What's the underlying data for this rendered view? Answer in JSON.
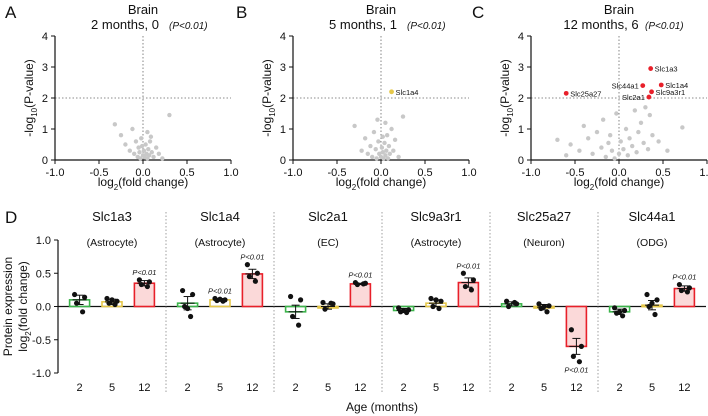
{
  "colors": {
    "gene_hit": "#e8202a",
    "gene_hit_b": "#e6c84a",
    "nonsig": "#c8c8c8",
    "bar_green": "#3cb44b",
    "bar_yellow": "#e6c84a",
    "bar_red": "#e8202a",
    "bar_red_fill": "#fbd9d9",
    "axis": "#111111"
  },
  "chart_data": [
    {
      "panel": "A",
      "type": "scatter",
      "title_line1": "Brain",
      "title_line2": "2 months, 0",
      "pnote": "(P<0.01)",
      "xlabel": "log2(fold change)",
      "ylabel": "-log10(P-value)",
      "xlim": [
        -1.0,
        1.0
      ],
      "ylim": [
        0,
        4
      ],
      "xticks": [
        "-1.0",
        "-0.5",
        "0.0",
        "0.5",
        "1.0"
      ],
      "yticks": [
        "0",
        "1",
        "2",
        "3",
        "4"
      ],
      "threshold_y": 2,
      "points": [
        [
          -0.32,
          1.15
        ],
        [
          -0.25,
          0.8
        ],
        [
          -0.2,
          0.5
        ],
        [
          -0.15,
          0.3
        ],
        [
          -0.12,
          1.0
        ],
        [
          -0.1,
          0.2
        ],
        [
          -0.08,
          0.6
        ],
        [
          -0.06,
          0.1
        ],
        [
          -0.05,
          0.4
        ],
        [
          -0.03,
          0.05
        ],
        [
          -0.02,
          0.7
        ],
        [
          0.0,
          0.15
        ],
        [
          0.01,
          0.3
        ],
        [
          0.02,
          0.1
        ],
        [
          0.03,
          0.5
        ],
        [
          0.04,
          0.2
        ],
        [
          0.05,
          0.05
        ],
        [
          0.06,
          0.35
        ],
        [
          0.07,
          0.15
        ],
        [
          0.08,
          0.6
        ],
        [
          0.1,
          0.25
        ],
        [
          0.12,
          0.1
        ],
        [
          0.15,
          0.4
        ],
        [
          0.18,
          0.2
        ],
        [
          0.22,
          0.05
        ],
        [
          0.3,
          1.45
        ],
        [
          0.05,
          0.9
        ],
        [
          -0.01,
          0.45
        ],
        [
          0.09,
          0.75
        ],
        [
          -0.04,
          0.25
        ]
      ],
      "labeled_points": []
    },
    {
      "panel": "B",
      "type": "scatter",
      "title_line1": "Brain",
      "title_line2": "5 months, 1",
      "pnote": "(P<0.01)",
      "xlabel": "log2(fold change)",
      "ylabel": "-log10(P-value)",
      "xlim": [
        -1.0,
        1.0
      ],
      "ylim": [
        0,
        4
      ],
      "xticks": [
        "-1.0",
        "-0.5",
        "0.0",
        "0.5",
        "1.0"
      ],
      "yticks": [
        "0",
        "1",
        "2",
        "3",
        "4"
      ],
      "threshold_y": 2,
      "points": [
        [
          -0.3,
          1.1
        ],
        [
          -0.22,
          0.3
        ],
        [
          -0.18,
          0.7
        ],
        [
          -0.15,
          0.2
        ],
        [
          -0.12,
          0.45
        ],
        [
          -0.1,
          0.1
        ],
        [
          -0.08,
          0.9
        ],
        [
          -0.06,
          0.35
        ],
        [
          -0.05,
          0.05
        ],
        [
          -0.03,
          0.6
        ],
        [
          -0.02,
          0.2
        ],
        [
          0.0,
          0.1
        ],
        [
          0.01,
          0.4
        ],
        [
          0.02,
          0.25
        ],
        [
          0.03,
          0.05
        ],
        [
          0.04,
          0.55
        ],
        [
          0.05,
          0.15
        ],
        [
          0.06,
          0.3
        ],
        [
          0.07,
          0.8
        ],
        [
          0.08,
          0.05
        ],
        [
          0.09,
          0.45
        ],
        [
          0.1,
          0.2
        ],
        [
          0.12,
          1.0
        ],
        [
          0.14,
          0.3
        ],
        [
          0.16,
          0.65
        ],
        [
          0.2,
          0.1
        ],
        [
          0.25,
          1.4
        ],
        [
          0.05,
          1.2
        ],
        [
          -0.04,
          1.3
        ],
        [
          0.02,
          0.75
        ]
      ],
      "labeled_points": [
        {
          "label": "Slc1a4",
          "x": 0.12,
          "y": 2.2,
          "color": "#e6c84a"
        }
      ]
    },
    {
      "panel": "C",
      "type": "scatter",
      "title_line1": "Brain",
      "title_line2": "12 months, 6",
      "pnote": "(P<0.01)",
      "xlabel": "log2(fold change)",
      "ylabel": "-log10(P-value)",
      "xlim": [
        -1.0,
        1.0
      ],
      "ylim": [
        0,
        4
      ],
      "xticks": [
        "-1.0",
        "-0.5",
        "0.0",
        "0.5",
        "1.0"
      ],
      "yticks": [
        "0",
        "1",
        "2",
        "3",
        "4"
      ],
      "threshold_y": 2,
      "points": [
        [
          -0.7,
          0.65
        ],
        [
          -0.55,
          0.5
        ],
        [
          -0.45,
          0.3
        ],
        [
          -0.4,
          1.1
        ],
        [
          -0.35,
          0.7
        ],
        [
          -0.3,
          0.2
        ],
        [
          -0.25,
          0.9
        ],
        [
          -0.2,
          0.4
        ],
        [
          -0.18,
          1.3
        ],
        [
          -0.15,
          0.1
        ],
        [
          -0.12,
          0.55
        ],
        [
          -0.1,
          0.8
        ],
        [
          -0.08,
          0.3
        ],
        [
          -0.05,
          0.05
        ],
        [
          -0.03,
          1.5
        ],
        [
          0.0,
          0.2
        ],
        [
          0.02,
          0.6
        ],
        [
          0.05,
          0.35
        ],
        [
          0.08,
          1.0
        ],
        [
          0.1,
          0.15
        ],
        [
          0.12,
          0.7
        ],
        [
          0.15,
          0.45
        ],
        [
          0.18,
          1.6
        ],
        [
          0.2,
          0.25
        ],
        [
          0.22,
          0.9
        ],
        [
          0.25,
          1.2
        ],
        [
          0.28,
          0.55
        ],
        [
          0.3,
          1.7
        ],
        [
          0.33,
          0.35
        ],
        [
          0.38,
          0.8
        ],
        [
          0.45,
          0.6
        ],
        [
          0.55,
          0.3
        ],
        [
          0.72,
          1.05
        ],
        [
          -0.6,
          0.15
        ],
        [
          0.35,
          1.45
        ]
      ],
      "labeled_points": [
        {
          "label": "Slc1a3",
          "x": 0.36,
          "y": 2.95,
          "color": "#e8202a"
        },
        {
          "label": "Slc44a1",
          "x": 0.27,
          "y": 2.4,
          "color": "#e8202a"
        },
        {
          "label": "Slc1a4",
          "x": 0.48,
          "y": 2.42,
          "color": "#e8202a"
        },
        {
          "label": "Slc9a3r1",
          "x": 0.37,
          "y": 2.2,
          "color": "#e8202a"
        },
        {
          "label": "Slc2a1",
          "x": 0.34,
          "y": 2.03,
          "color": "#e8202a"
        },
        {
          "label": "Slc25a27",
          "x": -0.6,
          "y": 2.15,
          "color": "#e8202a"
        }
      ]
    },
    {
      "panel": "D",
      "type": "bar",
      "ylabel_line1": "Protein expression",
      "ylabel_line2": "log2(fold change)",
      "xlabel": "Age (months)",
      "ylim": [
        -1.0,
        1.0
      ],
      "yticks": [
        "-1.0",
        "-0.5",
        "0.0",
        "0.5",
        "1.0"
      ],
      "age_labels": [
        "2",
        "5",
        "12"
      ],
      "groups": [
        {
          "gene": "Slc1a3",
          "cell": "(Astrocyte)",
          "bars": [
            {
              "age": "2",
              "mean": 0.1,
              "sem": 0.07,
              "color": "green",
              "pts": [
                0.18,
                0.14,
                0.05,
                -0.08
              ],
              "p": ""
            },
            {
              "age": "5",
              "mean": 0.07,
              "sem": 0.04,
              "color": "yellow",
              "pts": [
                0.12,
                0.08,
                0.05,
                0.03,
                0.1
              ],
              "p": ""
            },
            {
              "age": "12",
              "mean": 0.35,
              "sem": 0.04,
              "color": "red",
              "pts": [
                0.4,
                0.37,
                0.33,
                0.3
              ],
              "p": "P<0.01"
            }
          ]
        },
        {
          "gene": "Slc1a4",
          "cell": "(Astrocyte)",
          "bars": [
            {
              "age": "2",
              "mean": 0.05,
              "sem": 0.1,
              "color": "green",
              "pts": [
                0.24,
                0.18,
                0.0,
                -0.15,
                -0.03
              ],
              "p": ""
            },
            {
              "age": "5",
              "mean": 0.1,
              "sem": 0.02,
              "color": "yellow",
              "pts": [
                0.12,
                0.1,
                0.09,
                0.08,
                0.11
              ],
              "p": "P<0.01"
            },
            {
              "age": "12",
              "mean": 0.49,
              "sem": 0.07,
              "color": "red",
              "pts": [
                0.63,
                0.5,
                0.45,
                0.38
              ],
              "p": "P<0.01"
            }
          ]
        },
        {
          "gene": "Slc2a1",
          "cell": "(EC)",
          "bars": [
            {
              "age": "2",
              "mean": -0.08,
              "sem": 0.1,
              "color": "green",
              "pts": [
                0.15,
                0.1,
                -0.15,
                -0.28
              ],
              "p": ""
            },
            {
              "age": "5",
              "mean": 0.0,
              "sem": 0.04,
              "color": "yellow",
              "pts": [
                0.06,
                0.04,
                -0.04,
                0.05
              ],
              "p": ""
            },
            {
              "age": "12",
              "mean": 0.34,
              "sem": 0.01,
              "color": "red",
              "pts": [
                0.36,
                0.35,
                0.33,
                0.34
              ],
              "p": "P<0.01"
            }
          ]
        },
        {
          "gene": "Slc9a3r1",
          "cell": "(Astrocyte)",
          "bars": [
            {
              "age": "2",
              "mean": -0.06,
              "sem": 0.03,
              "color": "green",
              "pts": [
                -0.02,
                -0.05,
                -0.08,
                -0.09,
                -0.06
              ],
              "p": ""
            },
            {
              "age": "5",
              "mean": 0.05,
              "sem": 0.05,
              "color": "yellow",
              "pts": [
                0.12,
                0.08,
                0.0,
                -0.03,
                0.1
              ],
              "p": ""
            },
            {
              "age": "12",
              "mean": 0.36,
              "sem": 0.07,
              "color": "red",
              "pts": [
                0.5,
                0.4,
                0.3,
                0.25
              ],
              "p": "P<0.01"
            }
          ]
        },
        {
          "gene": "Slc25a27",
          "cell": "(Neuron)",
          "bars": [
            {
              "age": "2",
              "mean": 0.04,
              "sem": 0.03,
              "color": "green",
              "pts": [
                0.08,
                0.04,
                0.0,
                0.06
              ],
              "p": ""
            },
            {
              "age": "5",
              "mean": -0.01,
              "sem": 0.04,
              "color": "yellow",
              "pts": [
                0.04,
                0.01,
                -0.03,
                -0.08,
                0.0
              ],
              "p": ""
            },
            {
              "age": "12",
              "mean": -0.6,
              "sem": 0.12,
              "color": "red",
              "pts": [
                -0.35,
                -0.6,
                -0.75,
                -0.83
              ],
              "p": "P<0.01"
            }
          ]
        },
        {
          "gene": "Slc44a1",
          "cell": "(ODG)",
          "bars": [
            {
              "age": "2",
              "mean": -0.08,
              "sem": 0.04,
              "color": "green",
              "pts": [
                -0.02,
                -0.06,
                -0.1,
                -0.14,
                -0.08
              ],
              "p": ""
            },
            {
              "age": "5",
              "mean": 0.02,
              "sem": 0.07,
              "color": "yellow",
              "pts": [
                0.18,
                0.1,
                0.0,
                -0.12,
                0.05
              ],
              "p": ""
            },
            {
              "age": "12",
              "mean": 0.27,
              "sem": 0.04,
              "color": "red",
              "pts": [
                0.33,
                0.28,
                0.24,
                0.22
              ],
              "p": "P<0.01"
            }
          ]
        }
      ]
    }
  ]
}
